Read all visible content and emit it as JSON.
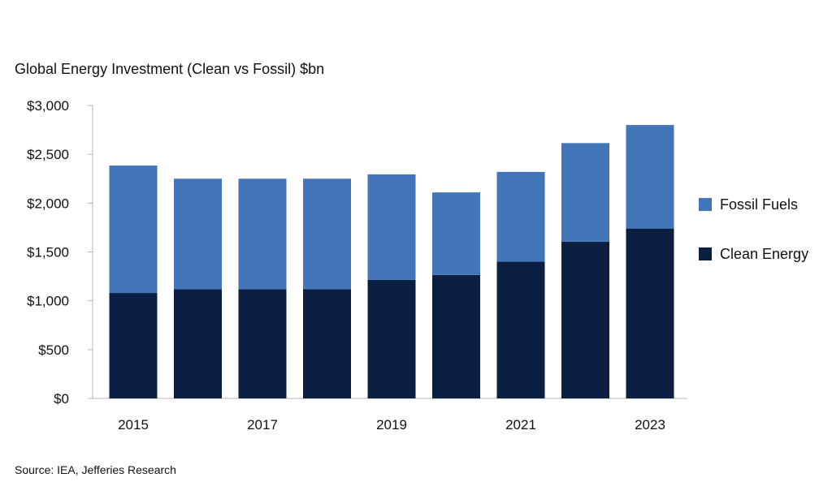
{
  "chart_data": {
    "type": "bar",
    "stacked": true,
    "title": "Global Energy Investment (Clean vs Fossil) $bn",
    "categories": [
      "2015",
      "2016",
      "2017",
      "2018",
      "2019",
      "2020",
      "2021",
      "2022",
      "2023"
    ],
    "x_tick_labels": [
      "2015",
      "",
      "2017",
      "",
      "2019",
      "",
      "2021",
      "",
      "2023"
    ],
    "series": [
      {
        "name": "Clean Energy",
        "color": "#0b1f42",
        "values": [
          1080,
          1120,
          1120,
          1120,
          1215,
          1265,
          1400,
          1605,
          1740
        ]
      },
      {
        "name": "Fossil Fuels",
        "color": "#4376b9",
        "values": [
          1305,
          1130,
          1130,
          1130,
          1080,
          845,
          920,
          1010,
          1060
        ]
      }
    ],
    "ylim": [
      0,
      3000
    ],
    "y_ticks": [
      0,
      500,
      1000,
      1500,
      2000,
      2500,
      3000
    ],
    "y_tick_labels": [
      "$0",
      "$500",
      "$1,000",
      "$1,500",
      "$2,000",
      "$2,500",
      "$3,000"
    ],
    "xlabel": "",
    "ylabel": "",
    "grid": false,
    "legend_position": "right",
    "legend": [
      {
        "label": "Fossil Fuels",
        "color": "#4376b9"
      },
      {
        "label": "Clean Energy",
        "color": "#0b1f42"
      }
    ]
  },
  "source": "Source: IEA, Jefferies Research"
}
